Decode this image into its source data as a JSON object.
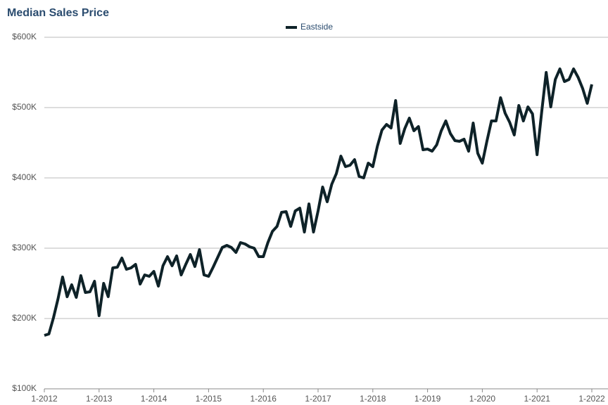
{
  "chart_data": {
    "type": "line",
    "title": "Median Sales Price",
    "categories": [
      "1-2012",
      null,
      null,
      null,
      null,
      null,
      null,
      null,
      null,
      null,
      null,
      null,
      "1-2013",
      null,
      null,
      null,
      null,
      null,
      null,
      null,
      null,
      null,
      null,
      null,
      "1-2014",
      null,
      null,
      null,
      null,
      null,
      null,
      null,
      null,
      null,
      null,
      null,
      "1-2015",
      null,
      null,
      null,
      null,
      null,
      null,
      null,
      null,
      null,
      null,
      null,
      "1-2016",
      null,
      null,
      null,
      null,
      null,
      null,
      null,
      null,
      null,
      null,
      null,
      "1-2017",
      null,
      null,
      null,
      null,
      null,
      null,
      null,
      null,
      null,
      null,
      null,
      "1-2018",
      null,
      null,
      null,
      null,
      null,
      null,
      null,
      null,
      null,
      null,
      null,
      "1-2019",
      null,
      null,
      null,
      null,
      null,
      null,
      null,
      null,
      null,
      null,
      null,
      "1-2020",
      null,
      null,
      null,
      null,
      null,
      null,
      null,
      null,
      null,
      null,
      null,
      "1-2021",
      null,
      null,
      null,
      null,
      null,
      null,
      null,
      null,
      null,
      null,
      null,
      "1-2022"
    ],
    "series": [
      {
        "name": "Eastside",
        "color": "#0e2228",
        "values": [
          176000,
          178000,
          201000,
          228000,
          259000,
          231000,
          248000,
          230000,
          261000,
          237000,
          238000,
          253000,
          204000,
          250000,
          231000,
          272000,
          273000,
          286000,
          270000,
          272000,
          277000,
          249000,
          262000,
          260000,
          267000,
          246000,
          275000,
          288000,
          275000,
          289000,
          262000,
          277000,
          291000,
          274000,
          298000,
          262000,
          260000,
          273000,
          287000,
          301000,
          304000,
          301000,
          294000,
          308000,
          306000,
          302000,
          300000,
          288000,
          288000,
          308000,
          324000,
          331000,
          351000,
          352000,
          331000,
          353000,
          357000,
          323000,
          363000,
          323000,
          353000,
          387000,
          366000,
          391000,
          406000,
          431000,
          416000,
          418000,
          426000,
          402000,
          400000,
          421000,
          416000,
          445000,
          468000,
          476000,
          471000,
          510000,
          449000,
          470000,
          485000,
          467000,
          473000,
          440000,
          441000,
          438000,
          447000,
          467000,
          481000,
          463000,
          453000,
          452000,
          455000,
          438000,
          478000,
          435000,
          421000,
          452000,
          481000,
          481000,
          514000,
          492000,
          479000,
          461000,
          503000,
          481000,
          501000,
          491000,
          433000,
          493000,
          550000,
          501000,
          540000,
          555000,
          537000,
          540000,
          555000,
          543000,
          527000,
          506000,
          533000
        ]
      }
    ],
    "ylim": [
      100000,
      600000
    ],
    "yticks": [
      {
        "value": 100000,
        "label": "$100K"
      },
      {
        "value": 200000,
        "label": "$200K"
      },
      {
        "value": 300000,
        "label": "$300K"
      },
      {
        "value": 400000,
        "label": "$400K"
      },
      {
        "value": 500000,
        "label": "$500K"
      },
      {
        "value": 600000,
        "label": "$600K"
      }
    ],
    "grid": true
  }
}
